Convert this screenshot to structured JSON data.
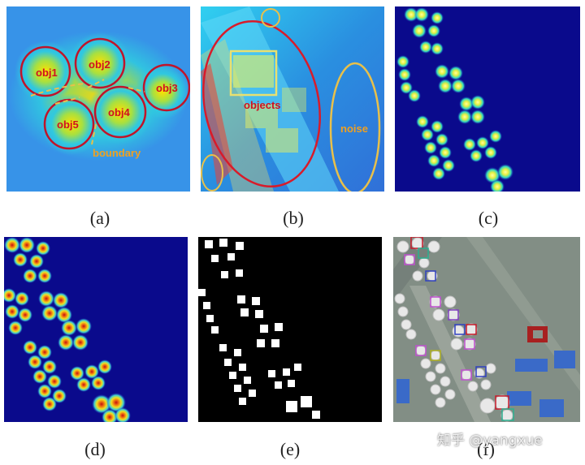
{
  "panels": [
    {
      "id": "a",
      "caption": "(a)",
      "labels": {
        "obj1": "obj1",
        "obj2": "obj2",
        "obj3": "obj3",
        "obj4": "obj4",
        "obj5": "obj5",
        "boundary": "boundary"
      }
    },
    {
      "id": "b",
      "caption": "(b)",
      "labels": {
        "objects": "objects",
        "noise": "noise"
      }
    },
    {
      "id": "c",
      "caption": "(c)"
    },
    {
      "id": "d",
      "caption": "(d)"
    },
    {
      "id": "e",
      "caption": "(e)"
    },
    {
      "id": "f",
      "caption": "(f)"
    }
  ],
  "watermark": "知乎 @yangxue",
  "colors": {
    "heat_background": "#0a0a8c",
    "annotation_red": "#c0142a",
    "annotation_yellow": "#e8c04a",
    "label_red": "#d01020",
    "label_orange": "#f0a020"
  }
}
